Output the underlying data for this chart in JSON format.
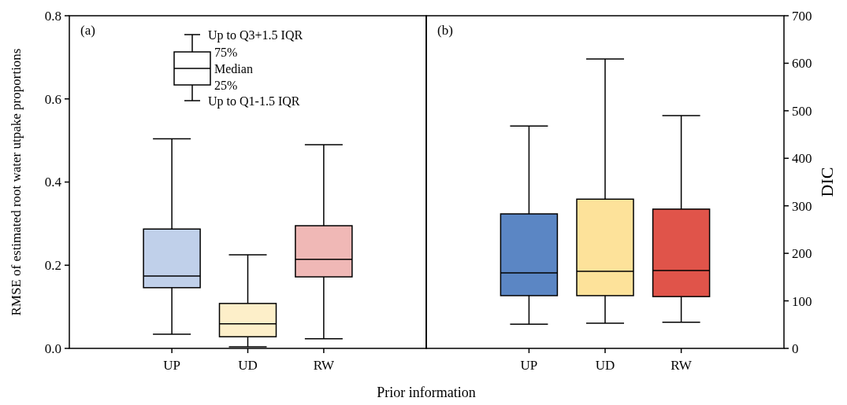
{
  "chart_data": [
    {
      "type": "box",
      "title": "(a)",
      "xlabel": "Prior information",
      "ylabel": "RMSE of estimated root water utpake proportions",
      "categories": [
        "UP",
        "UD",
        "RW"
      ],
      "colors": [
        "#c0d0ea",
        "#fdefc9",
        "#f0b8b6"
      ],
      "boxes": [
        {
          "low": 0.034,
          "q1": 0.146,
          "median": 0.174,
          "q3": 0.287,
          "high": 0.504
        },
        {
          "low": 0.004,
          "q1": 0.028,
          "median": 0.059,
          "q3": 0.108,
          "high": 0.225
        },
        {
          "low": 0.023,
          "q1": 0.172,
          "median": 0.214,
          "q3": 0.295,
          "high": 0.49
        }
      ],
      "ylim": [
        0,
        0.8
      ],
      "yticks": [
        {
          "value": 0,
          "label": "0.0"
        },
        0.2,
        0.4,
        0.6,
        0.8
      ],
      "annotations": [
        "Up to Q3+1.5 IQR",
        "75%",
        "Median",
        "25%",
        "Up to Q1-1.5 IQR"
      ]
    },
    {
      "type": "box",
      "title": "(b)",
      "y2label": "DIC",
      "categories": [
        "UP",
        "UD",
        "RW"
      ],
      "colors": [
        "#5b86c4",
        "#fde29a",
        "#e0544a"
      ],
      "series": [
        {
          "axis": "y2",
          "boxes": [
            {
              "low": 51,
              "q1": 111,
              "median": 159,
              "q3": 283,
              "high": 468
            },
            {
              "low": 53,
              "q1": 111,
              "median": 162,
              "q3": 314,
              "high": 609
            },
            {
              "low": 55,
              "q1": 109,
              "median": 164,
              "q3": 293,
              "high": 490
            }
          ]
        }
      ],
      "y2lim": [
        0,
        700
      ],
      "y2ticks": [
        0,
        100,
        200,
        300,
        400,
        500,
        600,
        700
      ]
    }
  ]
}
